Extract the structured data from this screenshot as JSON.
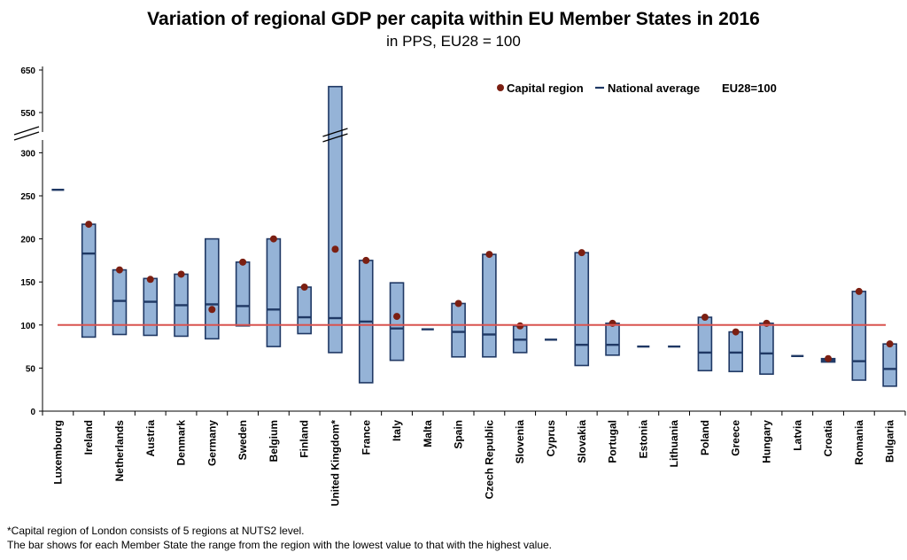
{
  "title": "Variation of regional GDP per capita within EU Member States in 2016",
  "subtitle": "in PPS, EU28 = 100",
  "footnotes": [
    "*Capital region of London consists of 5 regions at NUTS2 level.",
    "The bar shows for each Member State the range from the region with the lowest value to that with the highest value."
  ],
  "legend": {
    "capital": "Capital region",
    "national": "National average",
    "eu": "EU28=100"
  },
  "colors": {
    "bar_fill": "#95B3D7",
    "bar_stroke": "#1F3864",
    "capital": "#7B1F12",
    "eu_line": "#D9534F"
  },
  "chart_data": {
    "type": "bar",
    "subtype": "range-bar",
    "reference_line": 100,
    "y_ticks": [
      0,
      50,
      100,
      150,
      200,
      250,
      300,
      550,
      650
    ],
    "y_break": "between 300 and 550",
    "countries": [
      {
        "name": "Luxembourg",
        "min": 257,
        "max": 257,
        "avg": 257,
        "capital": null
      },
      {
        "name": "Ireland",
        "min": 86,
        "max": 217,
        "avg": 183,
        "capital": 217
      },
      {
        "name": "Netherlands",
        "min": 89,
        "max": 164,
        "avg": 128,
        "capital": 164
      },
      {
        "name": "Austria",
        "min": 88,
        "max": 154,
        "avg": 127,
        "capital": 153
      },
      {
        "name": "Denmark",
        "min": 87,
        "max": 159,
        "avg": 123,
        "capital": 159
      },
      {
        "name": "Germany",
        "min": 84,
        "max": 200,
        "avg": 124,
        "capital": 118
      },
      {
        "name": "Sweden",
        "min": 99,
        "max": 173,
        "avg": 122,
        "capital": 173
      },
      {
        "name": "Belgium",
        "min": 75,
        "max": 200,
        "avg": 118,
        "capital": 200
      },
      {
        "name": "Finland",
        "min": 90,
        "max": 144,
        "avg": 109,
        "capital": 144
      },
      {
        "name": "United Kingdom*",
        "min": 68,
        "max": 611,
        "avg": 108,
        "capital": 188
      },
      {
        "name": "France",
        "min": 33,
        "max": 175,
        "avg": 104,
        "capital": 175
      },
      {
        "name": "Italy",
        "min": 59,
        "max": 149,
        "avg": 96,
        "capital": 110
      },
      {
        "name": "Malta",
        "min": 95,
        "max": 95,
        "avg": 95,
        "capital": null
      },
      {
        "name": "Spain",
        "min": 63,
        "max": 125,
        "avg": 92,
        "capital": 125
      },
      {
        "name": "Czech Republic",
        "min": 63,
        "max": 182,
        "avg": 89,
        "capital": 182
      },
      {
        "name": "Slovenia",
        "min": 68,
        "max": 99,
        "avg": 83,
        "capital": 99
      },
      {
        "name": "Cyprus",
        "min": 83,
        "max": 83,
        "avg": 83,
        "capital": null
      },
      {
        "name": "Slovakia",
        "min": 53,
        "max": 184,
        "avg": 77,
        "capital": 184
      },
      {
        "name": "Portugal",
        "min": 65,
        "max": 102,
        "avg": 77,
        "capital": 102
      },
      {
        "name": "Estonia",
        "min": 75,
        "max": 75,
        "avg": 75,
        "capital": null
      },
      {
        "name": "Lithuania",
        "min": 75,
        "max": 75,
        "avg": 75,
        "capital": null
      },
      {
        "name": "Poland",
        "min": 47,
        "max": 109,
        "avg": 68,
        "capital": 109
      },
      {
        "name": "Greece",
        "min": 46,
        "max": 92,
        "avg": 68,
        "capital": 92
      },
      {
        "name": "Hungary",
        "min": 43,
        "max": 102,
        "avg": 67,
        "capital": 102
      },
      {
        "name": "Latvia",
        "min": 64,
        "max": 64,
        "avg": 64,
        "capital": null
      },
      {
        "name": "Croatia",
        "min": 57,
        "max": 61,
        "avg": 59,
        "capital": 61
      },
      {
        "name": "Romania",
        "min": 36,
        "max": 139,
        "avg": 58,
        "capital": 139
      },
      {
        "name": "Bulgaria",
        "min": 29,
        "max": 78,
        "avg": 49,
        "capital": 78
      }
    ]
  }
}
